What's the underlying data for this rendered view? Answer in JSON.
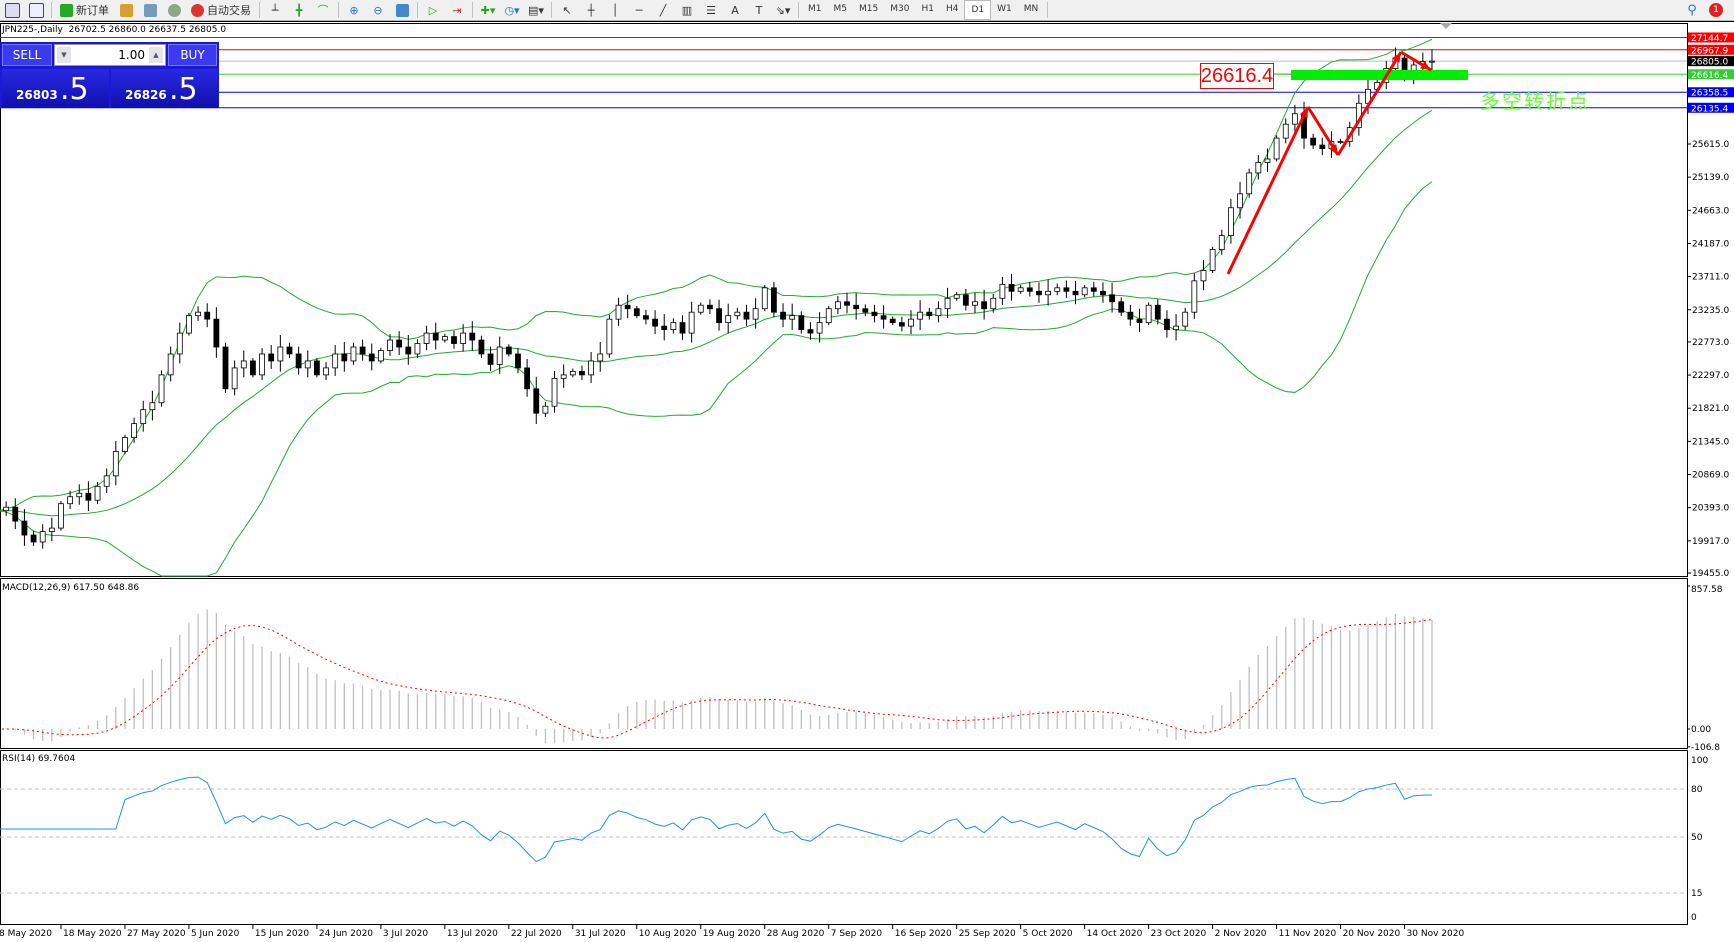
{
  "toolbar": {
    "icons": [
      "new-chart-icon",
      "zoom-chart-icon"
    ],
    "new_order": "新订单",
    "auto_trading": "自动交易",
    "timeframes": [
      "M1",
      "M5",
      "M15",
      "M30",
      "H1",
      "H4",
      "D1",
      "W1",
      "MN"
    ],
    "notification_count": "1"
  },
  "chart": {
    "symbol_line": "JPN225-,Daily  26702.5 26860.0 26637.5 26805.0"
  },
  "trade_panel": {
    "sell_label": "SELL",
    "buy_label": "BUY",
    "lot": "1.00",
    "sell_main": "26803",
    "sell_frac": ".5",
    "buy_main": "26826",
    "buy_frac": ".5"
  },
  "annotations": {
    "level_box": "26616.4",
    "pivot_text": "多空转折点",
    "arrow_color": "#ff0000",
    "zone_color": "#00ee00"
  },
  "chart_data": [
    {
      "type": "candlestick",
      "symbol": "JPN225-",
      "timeframe": "Daily",
      "close": [
        20350,
        20400,
        20200,
        20000,
        19900,
        20050,
        20100,
        20450,
        20550,
        20600,
        20500,
        20700,
        20850,
        21200,
        21400,
        21600,
        21800,
        21900,
        22300,
        22600,
        22900,
        23150,
        23200,
        23100,
        22700,
        22100,
        22400,
        22500,
        22300,
        22600,
        22500,
        22700,
        22600,
        22400,
        22500,
        22300,
        22400,
        22600,
        22500,
        22700,
        22600,
        22500,
        22650,
        22800,
        22700,
        22600,
        22750,
        22900,
        22800,
        22850,
        22750,
        22900,
        22800,
        22600,
        22450,
        22700,
        22600,
        22400,
        22100,
        21750,
        21850,
        22250,
        22300,
        22350,
        22300,
        22500,
        22600,
        23100,
        23300,
        23250,
        23150,
        23100,
        23000,
        22950,
        23050,
        22900,
        23200,
        23300,
        23250,
        23050,
        23150,
        23200,
        23100,
        23250,
        23550,
        23200,
        23100,
        23150,
        22950,
        22900,
        23050,
        23250,
        23350,
        23300,
        23250,
        23200,
        23150,
        23100,
        23050,
        23000,
        23100,
        23200,
        23150,
        23250,
        23400,
        23450,
        23300,
        23350,
        23250,
        23400,
        23600,
        23500,
        23550,
        23500,
        23450,
        23500,
        23550,
        23500,
        23450,
        23550,
        23500,
        23450,
        23350,
        23200,
        23100,
        23050,
        23300,
        23100,
        22950,
        23000,
        23200,
        23650,
        23800,
        24100,
        24300,
        24700,
        24900,
        25200,
        25350,
        25400,
        25700,
        25900,
        26050,
        25700,
        25600,
        25550,
        25650,
        25650,
        25850,
        26200,
        26400,
        26500,
        26700,
        26850,
        26550,
        26750,
        26800,
        26805
      ],
      "x_ticks": [
        "8 May 2020",
        "18 May 2020",
        "27 May 2020",
        "5 Jun 2020",
        "15 Jun 2020",
        "24 Jun 2020",
        "3 Jul 2020",
        "13 Jul 2020",
        "22 Jul 2020",
        "31 Jul 2020",
        "10 Aug 2020",
        "19 Aug 2020",
        "28 Aug 2020",
        "7 Sep 2020",
        "16 Sep 2020",
        "25 Sep 2020",
        "5 Oct 2020",
        "14 Oct 2020",
        "23 Oct 2020",
        "2 Nov 2020",
        "11 Nov 2020",
        "20 Nov 2020",
        "30 Nov 2020"
      ],
      "y_ticks": [
        "19455.0",
        "19917.0",
        "20393.0",
        "20869.0",
        "21345.0",
        "21821.0",
        "22297.0",
        "22773.0",
        "23235.0",
        "23711.0",
        "24187.0",
        "24663.0",
        "25139.0",
        "25615.0"
      ],
      "ylim": [
        19455,
        27350
      ],
      "overlay": "Bollinger Bands (20,2)",
      "band_color": "#22aa33",
      "horizontal_lines": [
        {
          "value": "27144.7",
          "color": "#ff0000"
        },
        {
          "value": "26967.9",
          "color": "#ff0000"
        },
        {
          "value": "26805.0",
          "color": "#000000"
        },
        {
          "value": "26616.4",
          "color": "#33cc33"
        },
        {
          "value": "26358.5",
          "color": "#0000ff"
        },
        {
          "value": "26135.4",
          "color": "#0000ff"
        }
      ]
    },
    {
      "type": "bar",
      "label": "MACD(12,26,9) 617.50 648.86",
      "y_ticks": [
        "857.58",
        "0.00",
        "-106.8"
      ],
      "ylim": [
        -106.8,
        857.58
      ],
      "histogram_color": "#c0c0c0",
      "signal_color": "#ff0000"
    },
    {
      "type": "line",
      "label": "RSI(14) 69.7604",
      "y_ticks": [
        "100",
        "80",
        "50",
        "15",
        "0"
      ],
      "levels": [
        80,
        50,
        15
      ],
      "ylim": [
        0,
        100
      ],
      "line_color": "#1e90ff"
    }
  ]
}
